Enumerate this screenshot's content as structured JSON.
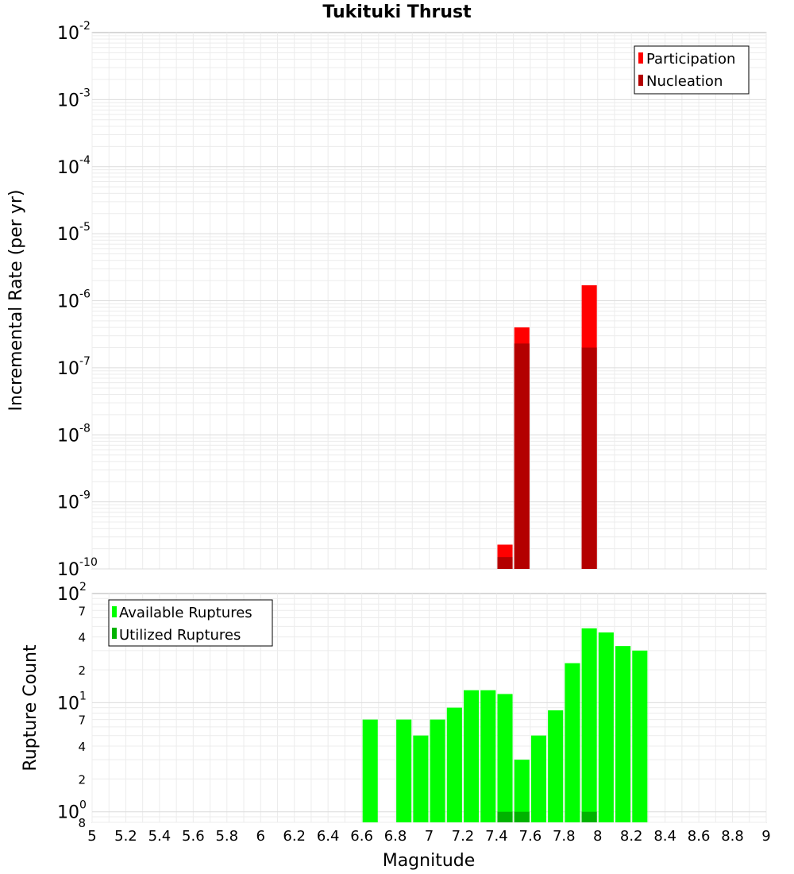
{
  "chart_data": [
    {
      "type": "bar",
      "title": "Tukituki Thrust",
      "ylabel": "Incremental Rate (per yr)",
      "yscale": "log",
      "ylim": [
        1e-10,
        0.01
      ],
      "xlim": [
        5,
        9
      ],
      "yticks": [
        {
          "base": "10",
          "exp": "-10",
          "value": 1e-10
        },
        {
          "base": "10",
          "exp": "-9",
          "value": 1e-09
        },
        {
          "base": "10",
          "exp": "-8",
          "value": 1e-08
        },
        {
          "base": "10",
          "exp": "-7",
          "value": 1e-07
        },
        {
          "base": "10",
          "exp": "-6",
          "value": 1e-06
        },
        {
          "base": "10",
          "exp": "-5",
          "value": 1e-05
        },
        {
          "base": "10",
          "exp": "-4",
          "value": 0.0001
        },
        {
          "base": "10",
          "exp": "-3",
          "value": 0.001
        },
        {
          "base": "10",
          "exp": "-2",
          "value": 0.01
        }
      ],
      "bar_width": 0.09,
      "legend_position": "top-right",
      "series": [
        {
          "name": "Participation",
          "color": "#ff0000",
          "x": [
            7.45,
            7.55,
            7.95
          ],
          "values": [
            2.3e-10,
            4e-07,
            1.7e-06
          ]
        },
        {
          "name": "Nucleation",
          "color": "#b30000",
          "x": [
            7.45,
            7.55,
            7.95
          ],
          "values": [
            1.5e-10,
            2.3e-07,
            2e-07
          ]
        }
      ]
    },
    {
      "type": "bar",
      "ylabel": "Rupture Count",
      "xlabel": "Magnitude",
      "yscale": "log",
      "ylim": [
        0.8,
        100
      ],
      "xlim": [
        5,
        9
      ],
      "yticks": [
        {
          "base": "10",
          "exp": "0",
          "value": 1
        },
        {
          "base": "10",
          "exp": "1",
          "value": 10
        },
        {
          "base": "10",
          "exp": "2",
          "value": 100
        }
      ],
      "minor_yticks": [
        {
          "label": "8",
          "value": 0.8
        },
        {
          "label": "2",
          "value": 2
        },
        {
          "label": "4",
          "value": 4
        },
        {
          "label": "7",
          "value": 7
        },
        {
          "label": "2",
          "value": 20
        },
        {
          "label": "4",
          "value": 40
        },
        {
          "label": "7",
          "value": 70
        }
      ],
      "xticks": [
        "5",
        "5.2",
        "5.4",
        "5.6",
        "5.8",
        "6",
        "6.2",
        "6.4",
        "6.6",
        "6.8",
        "7",
        "7.2",
        "7.4",
        "7.6",
        "7.8",
        "8",
        "8.2",
        "8.4",
        "8.6",
        "8.8",
        "9"
      ],
      "bar_width": 0.09,
      "legend_position": "top-left",
      "series": [
        {
          "name": "Available Ruptures",
          "color": "#00ff00",
          "x": [
            6.65,
            6.85,
            6.95,
            7.05,
            7.15,
            7.25,
            7.35,
            7.45,
            7.55,
            7.65,
            7.75,
            7.85,
            7.95,
            8.05,
            8.15,
            8.25
          ],
          "values": [
            7,
            7,
            5,
            7,
            9,
            13,
            13,
            12,
            3,
            5,
            8.5,
            23,
            48,
            44,
            33,
            30
          ]
        },
        {
          "name": "Utilized Ruptures",
          "color": "#00b300",
          "x": [
            7.45,
            7.55,
            7.95
          ],
          "values": [
            1,
            1,
            1
          ]
        }
      ]
    }
  ]
}
